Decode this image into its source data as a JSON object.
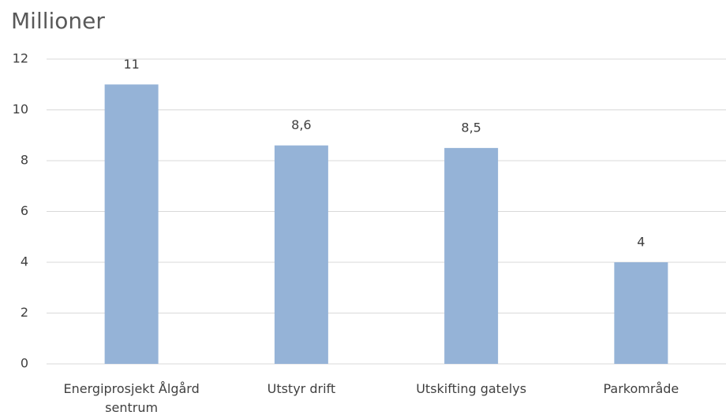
{
  "chart_data": {
    "type": "bar",
    "title": "Millioner",
    "categories": [
      "Energiprosjekt Ålgård sentrum",
      "Utstyr drift",
      "Utskifting gatelys",
      "Parkområde"
    ],
    "values": [
      11,
      8.6,
      8.5,
      4
    ],
    "value_labels": [
      "11",
      "8,6",
      "8,5",
      "4"
    ],
    "color": "#95b3d7",
    "ylim": [
      0,
      12
    ],
    "yticks": [
      0,
      2,
      4,
      6,
      8,
      10,
      12
    ],
    "grid": true
  }
}
